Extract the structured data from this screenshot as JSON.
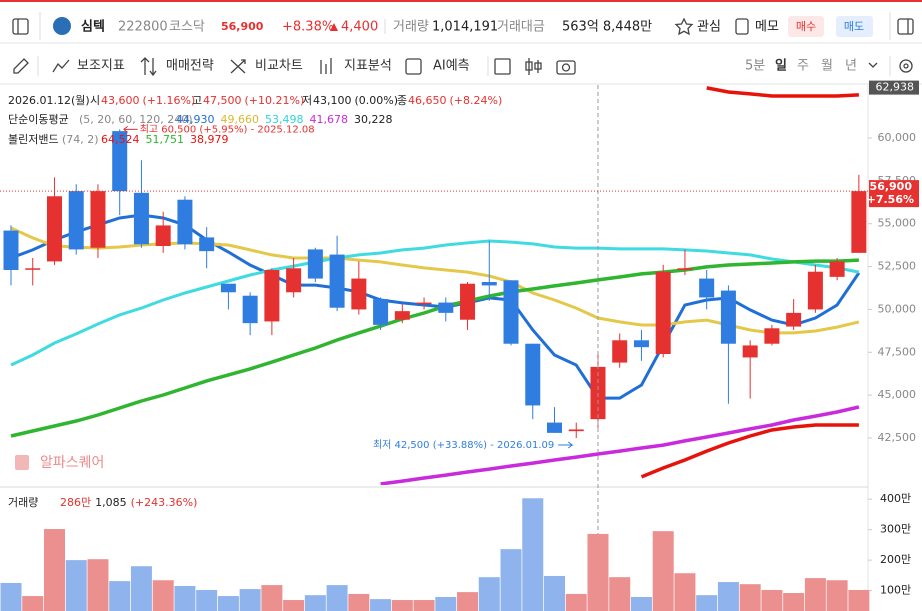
{
  "header": {
    "name": "심텍",
    "code": "222800",
    "market": "코스닥",
    "price": "56,900",
    "change_rate": "+8.38%",
    "change": "4,400",
    "volume_label": "거래량",
    "volume": "1,014,191",
    "amount_label": "거래대금",
    "amount": "563억 8,448만",
    "buttons": [
      "관심",
      "메모",
      "매수",
      "매도"
    ]
  },
  "toolbar": {
    "tools": [
      "보조지표",
      "매매전략",
      "비교차트",
      "지표분석",
      "AI예측"
    ],
    "periods": [
      "5분",
      "일",
      "주",
      "월",
      "년"
    ]
  },
  "chart_data": [
    {
      "type": "candlestick",
      "date": "2026.01.12(월)",
      "info": [
        [
          "시",
          "43,600",
          "(+1.16%)"
        ],
        [
          "고",
          "47,500",
          "(+10.21%)"
        ],
        [
          "저",
          "43,100",
          "(0.00%)"
        ],
        [
          "종",
          "46,650",
          "(+8.24%)"
        ]
      ],
      "ma_label": "단순이동평균",
      "ma_params": "(5, 20, 60, 120, 240)",
      "ma_legend": [
        {
          "text": "44,930",
          "color": "#1f6fd6"
        },
        {
          "text": "49,660",
          "color": "#d9b92e"
        },
        {
          "text": "53,498",
          "color": "#2fd3dc"
        },
        {
          "text": "41,678",
          "color": "#c92bdc"
        },
        {
          "text": "30,228",
          "color": "#222222"
        }
      ],
      "bb_label": "볼린저밴드",
      "bb_params": "(74, 2)",
      "bb_legend": [
        {
          "text": "64,524",
          "color": "#e8120c"
        },
        {
          "text": "51,751",
          "color": "#2fb52f"
        },
        {
          "text": "38,979",
          "color": "#e8120c"
        }
      ],
      "up_color": "#e5312f",
      "down_color": "#2f7de1",
      "open": [
        54600,
        52400,
        52800,
        56900,
        53600,
        60400,
        56800,
        53700,
        56400,
        54200,
        51500,
        50800,
        49300,
        51000,
        53500,
        53200,
        50000,
        50600,
        49400,
        50400,
        50400,
        49400,
        51600,
        51700,
        48000,
        43400,
        42900,
        43600,
        46900,
        48200,
        47400,
        52300,
        51800,
        51100,
        47200,
        48000,
        49000,
        50000,
        51900,
        53300
      ],
      "high": [
        54900,
        53000,
        57700,
        57300,
        57300,
        60500,
        58700,
        55700,
        56600,
        54800,
        51500,
        51000,
        52400,
        53000,
        53600,
        54300,
        52800,
        50700,
        50300,
        50700,
        50700,
        51600,
        54000,
        51700,
        48000,
        44300,
        43400,
        47500,
        48600,
        48800,
        52600,
        53500,
        52300,
        51400,
        48200,
        49100,
        50600,
        52600,
        53000,
        57850
      ],
      "low": [
        51400,
        51400,
        52600,
        53200,
        53000,
        55500,
        53600,
        53300,
        53500,
        52400,
        50000,
        48500,
        48500,
        50700,
        51600,
        49900,
        49700,
        48800,
        49200,
        50000,
        49300,
        48800,
        50500,
        47900,
        43600,
        42800,
        42500,
        43100,
        46600,
        47000,
        47200,
        52000,
        50000,
        44500,
        44800,
        47900,
        48800,
        49800,
        51700,
        53300
      ],
      "close": [
        52300,
        52400,
        56600,
        53500,
        56900,
        56900,
        53800,
        54900,
        53800,
        53400,
        51000,
        49200,
        52300,
        52400,
        51800,
        50100,
        51800,
        49100,
        49900,
        50400,
        49800,
        51500,
        51400,
        48000,
        44400,
        42800,
        43000,
        46650,
        48200,
        47800,
        52200,
        52400,
        50700,
        48000,
        47900,
        48900,
        49800,
        52200,
        52800,
        56900
      ],
      "series": [
        {
          "color": "#1f6fd6",
          "values": [
            53000,
            53470,
            54050,
            54520,
            54930,
            55330,
            55510,
            55330,
            54930,
            54050,
            53350,
            52590,
            52010,
            51420,
            51420,
            51250,
            51020,
            50550,
            50380,
            50260,
            50140,
            50380,
            50670,
            50550,
            48800,
            47340,
            46760,
            44830,
            44830,
            45590,
            47930,
            50260,
            50550,
            50670,
            49970,
            49380,
            49090,
            49500,
            50260,
            52130
          ]
        },
        {
          "color": "#e3c84a",
          "values": [
            54750,
            54170,
            53700,
            53640,
            53580,
            53640,
            53760,
            53820,
            53880,
            53820,
            53760,
            53470,
            53180,
            53000,
            53000,
            53000,
            52880,
            52770,
            52590,
            52420,
            52300,
            52180,
            51950,
            51600,
            50960,
            50550,
            50080,
            49500,
            49270,
            49090,
            49090,
            49270,
            49380,
            49090,
            48800,
            48630,
            48630,
            48740,
            48970,
            49270
          ]
        },
        {
          "color": "#3fdbe0",
          "values": [
            46760,
            47340,
            48040,
            48570,
            49150,
            49680,
            50080,
            50550,
            50960,
            51310,
            51660,
            52010,
            52300,
            52530,
            52770,
            53000,
            53180,
            53290,
            53470,
            53580,
            53760,
            53880,
            53990,
            53930,
            53820,
            53640,
            53580,
            53580,
            53530,
            53530,
            53530,
            53470,
            53410,
            53290,
            53180,
            52940,
            52770,
            52590,
            52420,
            52180
          ]
        },
        {
          "color": "#c92bdc",
          "values": [
            null,
            null,
            null,
            null,
            null,
            null,
            null,
            null,
            null,
            null,
            null,
            null,
            null,
            null,
            null,
            null,
            null,
            39820,
            39990,
            40170,
            40340,
            40520,
            40690,
            40870,
            41040,
            41220,
            41390,
            41570,
            41740,
            41920,
            42090,
            42330,
            42560,
            42790,
            43030,
            43260,
            43550,
            43780,
            44020,
            44310
          ]
        },
        {
          "color": "#2fb52f",
          "values": [
            42620,
            42910,
            43200,
            43490,
            43840,
            44250,
            44660,
            45010,
            45420,
            45830,
            46180,
            46530,
            46930,
            47340,
            47750,
            48220,
            48630,
            49030,
            49440,
            49790,
            50200,
            50490,
            50780,
            51020,
            51190,
            51370,
            51540,
            51720,
            51890,
            52070,
            52180,
            52300,
            52480,
            52590,
            52650,
            52710,
            52770,
            52820,
            52820,
            52880
          ]
        },
        {
          "color": "#e8120c",
          "values": [
            null,
            null,
            null,
            null,
            null,
            null,
            null,
            null,
            null,
            null,
            null,
            null,
            null,
            null,
            null,
            null,
            null,
            null,
            null,
            null,
            null,
            null,
            null,
            null,
            null,
            null,
            null,
            null,
            null,
            null,
            null,
            null,
            62920,
            62680,
            62570,
            62450,
            62450,
            62450,
            62450,
            62510
          ]
        },
        {
          "color": "#e8120c",
          "values": [
            null,
            null,
            null,
            null,
            null,
            null,
            null,
            null,
            null,
            null,
            null,
            null,
            null,
            null,
            null,
            null,
            null,
            null,
            null,
            null,
            null,
            null,
            null,
            null,
            null,
            null,
            null,
            null,
            null,
            40230,
            40750,
            41220,
            41740,
            42210,
            42620,
            42970,
            43140,
            43260,
            43260,
            43260
          ]
        }
      ],
      "ylim": [
        39760,
        63090
      ],
      "yticks": [
        {
          "value": 42500,
          "label": "42,500"
        },
        {
          "value": 45000,
          "label": "45,000"
        },
        {
          "value": 47500,
          "label": "47,500"
        },
        {
          "value": 50000,
          "label": "50,000"
        },
        {
          "value": 52500,
          "label": "52,500"
        },
        {
          "value": 55000,
          "label": "55,000"
        },
        {
          "value": 57500,
          "label": "57,500"
        },
        {
          "value": 60000,
          "label": "60,000"
        }
      ],
      "band_top": {
        "value": 62938,
        "label": "62,938"
      },
      "current_price": {
        "value": 56900,
        "label": "56,900",
        "change": "+7.56%"
      },
      "annotations": [
        "최고 60,500 (+5.95%) - 2025.12.08",
        "최저 42,500 (+33.88%) - 2026.01.09"
      ],
      "watermark": "알파스퀘어"
    },
    {
      "type": "bar",
      "label": "거래량",
      "info": [
        "286만",
        "1,085",
        "(+243.36%)"
      ],
      "up_color": "#eb8f8f",
      "down_color": "#8fb3ec",
      "values": [
        125,
        82,
        302,
        200,
        203,
        131,
        180,
        134,
        115,
        102,
        82,
        105,
        118,
        69,
        85,
        118,
        89,
        72,
        69,
        69,
        79,
        95,
        144,
        236,
        403,
        148,
        89,
        286,
        144,
        79,
        295,
        157,
        85,
        128,
        121,
        102,
        92,
        141,
        134,
        102
      ],
      "ylim": [
        33,
        440
      ],
      "yticks": [
        {
          "value": 100,
          "label": "100만"
        },
        {
          "value": 200,
          "label": "200만"
        },
        {
          "value": 300,
          "label": "300만"
        },
        {
          "value": 400,
          "label": "400만"
        }
      ]
    }
  ]
}
